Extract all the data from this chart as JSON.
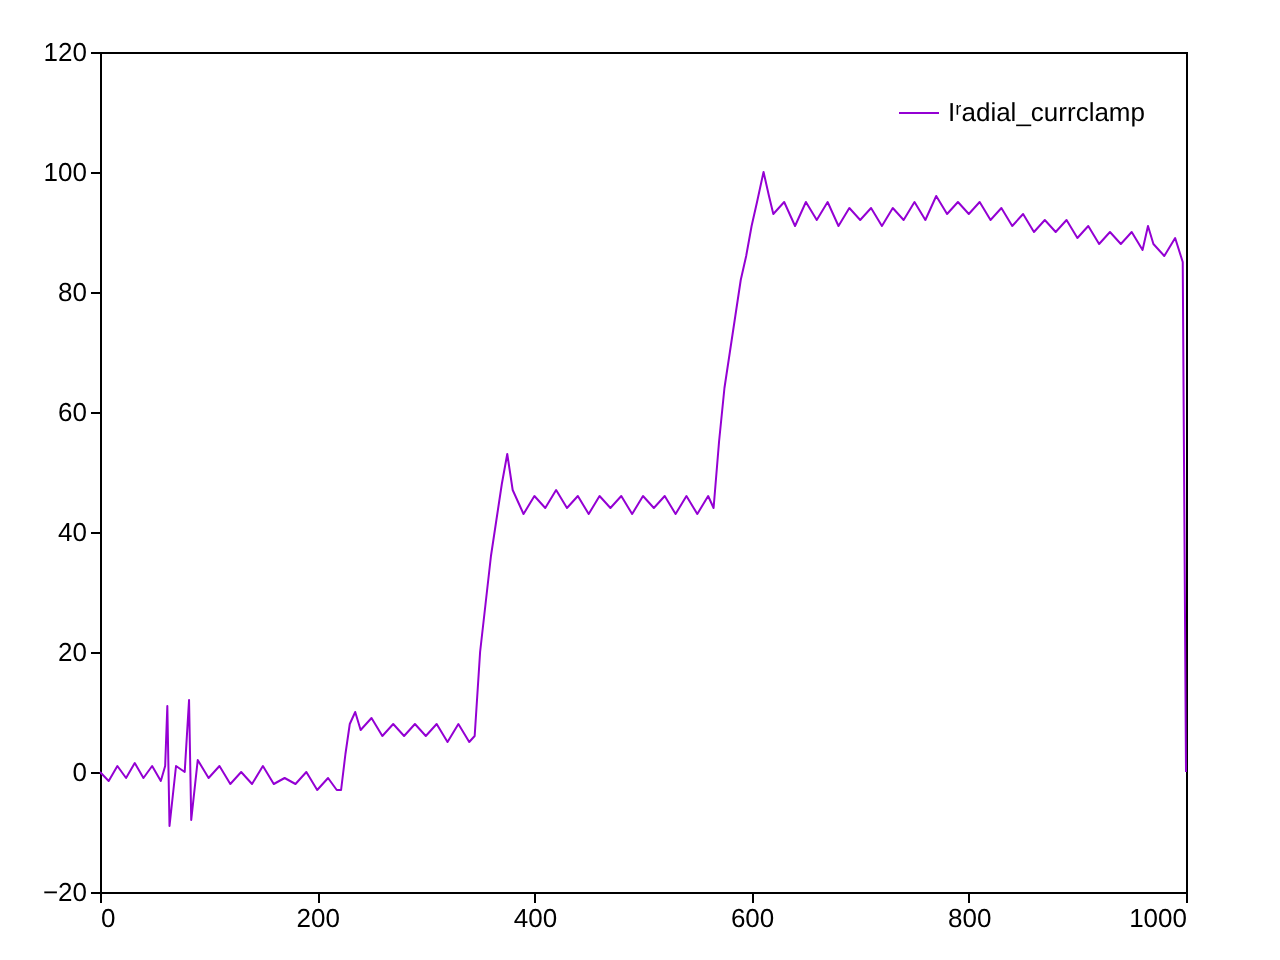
{
  "chart_data": {
    "type": "line",
    "x": [
      0,
      8,
      16,
      24,
      32,
      40,
      48,
      56,
      60,
      62,
      64,
      70,
      78,
      82,
      84,
      90,
      100,
      110,
      120,
      130,
      140,
      150,
      160,
      170,
      180,
      190,
      200,
      210,
      218,
      222,
      226,
      230,
      235,
      240,
      250,
      260,
      270,
      280,
      290,
      300,
      310,
      320,
      330,
      340,
      345,
      350,
      355,
      360,
      365,
      370,
      375,
      380,
      385,
      390,
      400,
      410,
      420,
      430,
      440,
      450,
      460,
      470,
      480,
      490,
      500,
      510,
      520,
      530,
      540,
      550,
      560,
      565,
      570,
      575,
      580,
      585,
      590,
      595,
      600,
      605,
      611,
      616,
      620,
      630,
      640,
      650,
      660,
      670,
      680,
      690,
      700,
      710,
      720,
      730,
      740,
      750,
      760,
      770,
      780,
      790,
      800,
      810,
      820,
      830,
      840,
      850,
      860,
      870,
      880,
      890,
      900,
      910,
      920,
      930,
      940,
      950,
      960,
      965,
      970,
      980,
      990,
      997,
      1000
    ],
    "series": [
      {
        "name": "Iʳadial_currclamp",
        "color": "#9400d3",
        "values": [
          0,
          -1.5,
          1,
          -1,
          1.5,
          -1,
          1,
          -1.5,
          1,
          11,
          -9,
          1,
          0,
          12,
          -8,
          2,
          -1,
          1,
          -2,
          0,
          -2,
          1,
          -2,
          -1,
          -2,
          0,
          -3,
          -1,
          -3,
          -3,
          3,
          8,
          10,
          7,
          9,
          6,
          8,
          6,
          8,
          6,
          8,
          5,
          8,
          5,
          6,
          20,
          28,
          36,
          42,
          48,
          53,
          47,
          45,
          43,
          46,
          44,
          47,
          44,
          46,
          43,
          46,
          44,
          46,
          43,
          46,
          44,
          46,
          43,
          46,
          43,
          46,
          44,
          55,
          64,
          70,
          76,
          82,
          86,
          91,
          95,
          100,
          96,
          93,
          95,
          91,
          95,
          92,
          95,
          91,
          94,
          92,
          94,
          91,
          94,
          92,
          95,
          92,
          96,
          93,
          95,
          93,
          95,
          92,
          94,
          91,
          93,
          90,
          92,
          90,
          92,
          89,
          91,
          88,
          90,
          88,
          90,
          87,
          91,
          88,
          86,
          89,
          85,
          0
        ]
      }
    ],
    "xlim": [
      0,
      1000
    ],
    "ylim": [
      -20,
      120
    ],
    "xticks": [
      0,
      200,
      400,
      600,
      800,
      1000
    ],
    "yticks": [
      -20,
      0,
      20,
      40,
      60,
      80,
      100,
      120
    ],
    "grid": false,
    "legend": "top right",
    "marker": "none",
    "line_style": "solid"
  }
}
